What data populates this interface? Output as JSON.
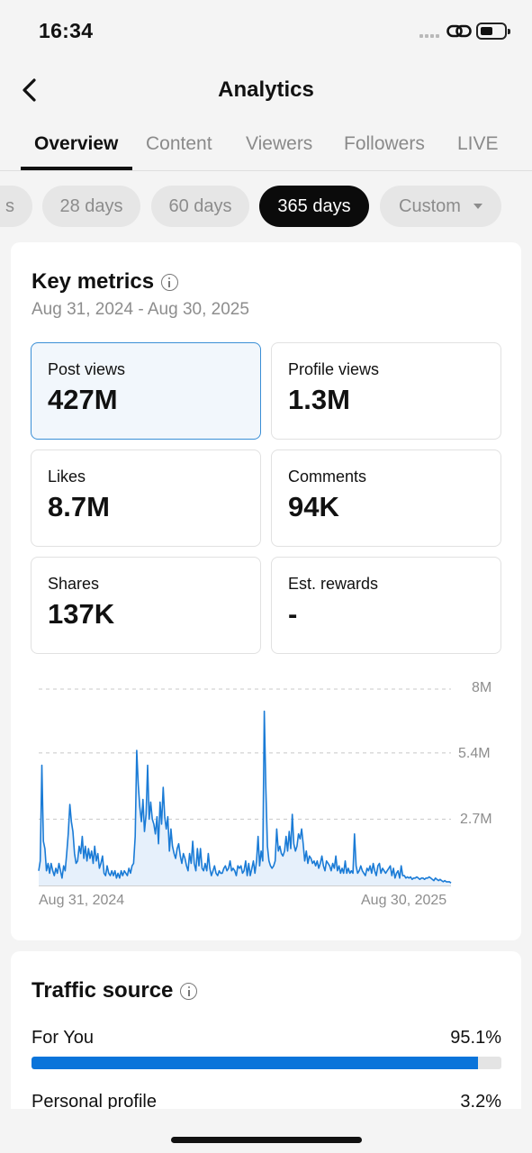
{
  "status_bar": {
    "time": "16:34",
    "icons": [
      "signal-icon",
      "link-icon",
      "battery-icon"
    ]
  },
  "nav": {
    "title": "Analytics",
    "back_icon": "chevron-left-icon"
  },
  "tabs": [
    {
      "label": "Overview",
      "active": true
    },
    {
      "label": "Content",
      "active": false
    },
    {
      "label": "Viewers",
      "active": false
    },
    {
      "label": "Followers",
      "active": false
    },
    {
      "label": "LIVE",
      "active": false
    }
  ],
  "periods": [
    {
      "label": "s",
      "active": false
    },
    {
      "label": "28 days",
      "active": false
    },
    {
      "label": "60 days",
      "active": false
    },
    {
      "label": "365 days",
      "active": true
    },
    {
      "label": "Custom",
      "active": false
    }
  ],
  "key_metrics": {
    "title": "Key metrics",
    "date_range": "Aug 31, 2024 - Aug 30, 2025",
    "metrics": [
      {
        "label": "Post views",
        "value": "427M",
        "selected": true
      },
      {
        "label": "Profile views",
        "value": "1.3M",
        "selected": false
      },
      {
        "label": "Likes",
        "value": "8.7M",
        "selected": false
      },
      {
        "label": "Comments",
        "value": "94K",
        "selected": false
      },
      {
        "label": "Shares",
        "value": "137K",
        "selected": false
      },
      {
        "label": "Est. rewards",
        "value": "-",
        "selected": false
      }
    ]
  },
  "chart_data": {
    "type": "area",
    "series": [
      {
        "values": [
          0.6,
          1.0,
          4.9,
          1.8,
          1.5,
          0.6,
          0.9,
          0.5,
          0.9,
          0.6,
          0.4,
          0.7,
          0.5,
          0.9,
          0.6,
          0.3,
          0.8,
          0.6,
          1.3,
          2.1,
          3.3,
          2.6,
          2.2,
          1.3,
          0.9,
          1.0,
          1.6,
          1.3,
          2.0,
          1.1,
          1.6,
          1.0,
          1.5,
          1.1,
          1.4,
          0.9,
          1.6,
          1.0,
          1.3,
          0.7,
          0.9,
          1.2,
          0.5,
          0.4,
          0.8,
          0.5,
          0.4,
          0.6,
          0.4,
          0.6,
          0.3,
          0.5,
          0.3,
          0.6,
          0.4,
          0.6,
          0.5,
          0.4,
          0.7,
          0.5,
          0.8,
          0.9,
          2.0,
          5.5,
          4.1,
          3.2,
          2.6,
          3.5,
          2.2,
          2.9,
          4.9,
          2.7,
          3.4,
          2.7,
          2.5,
          2.1,
          2.8,
          1.7,
          3.4,
          2.5,
          4.0,
          2.8,
          2.3,
          2.8,
          1.4,
          2.3,
          1.6,
          1.3,
          1.1,
          1.5,
          1.7,
          1.2,
          0.9,
          1.3,
          1.1,
          0.8,
          0.6,
          1.3,
          0.9,
          1.8,
          0.9,
          0.6,
          1.5,
          0.8,
          1.5,
          0.7,
          0.6,
          0.9,
          0.6,
          1.3,
          0.7,
          0.4,
          0.6,
          0.8,
          0.5,
          0.4,
          0.6,
          0.5,
          0.5,
          0.7,
          0.8,
          0.6,
          0.7,
          1.0,
          0.6,
          0.7,
          0.6,
          0.4,
          0.8,
          0.7,
          0.8,
          0.5,
          0.6,
          1.0,
          0.4,
          0.9,
          0.4,
          0.7,
          1.0,
          0.5,
          1.0,
          2.0,
          0.8,
          1.4,
          1.0,
          7.1,
          4.0,
          1.6,
          1.0,
          0.8,
          0.7,
          0.8,
          1.0,
          2.3,
          1.4,
          1.6,
          1.3,
          1.2,
          1.4,
          2.0,
          1.4,
          2.2,
          1.5,
          2.9,
          1.7,
          1.4,
          1.6,
          2.1,
          1.9,
          2.3,
          1.7,
          1.0,
          1.4,
          0.9,
          1.2,
          1.1,
          0.9,
          1.0,
          0.8,
          1.0,
          0.7,
          0.9,
          1.2,
          0.8,
          0.6,
          1.0,
          0.9,
          0.8,
          0.6,
          0.9,
          0.7,
          1.2,
          0.6,
          0.8,
          0.5,
          0.7,
          0.5,
          1.0,
          0.5,
          0.7,
          0.5,
          0.6,
          0.5,
          2.1,
          0.8,
          0.5,
          0.6,
          0.8,
          0.6,
          0.5,
          0.4,
          0.7,
          0.6,
          0.8,
          0.5,
          0.9,
          0.6,
          0.4,
          0.8,
          0.9,
          0.5,
          0.7,
          0.6,
          0.5,
          0.6,
          0.7,
          0.8,
          0.4,
          0.7,
          0.3,
          0.5,
          0.6,
          0.3,
          0.8,
          0.4,
          0.4,
          0.3,
          0.35,
          0.3,
          0.35,
          0.25,
          0.3,
          0.3,
          0.35,
          0.3,
          0.25,
          0.3,
          0.3,
          0.25,
          0.3,
          0.3,
          0.35,
          0.3,
          0.25,
          0.2,
          0.3,
          0.25,
          0.2,
          0.25,
          0.2,
          0.15,
          0.2,
          0.15,
          0.15,
          0.15,
          0.1
        ]
      }
    ],
    "y_ticks": [
      "8M",
      "5.4M",
      "2.7M"
    ],
    "y_tick_values": [
      8,
      5.4,
      2.7
    ],
    "ylim": [
      0,
      8
    ],
    "x_labels": [
      "Aug 31, 2024",
      "Aug 30, 2025"
    ],
    "grid": true,
    "line_color": "#1a7bd6",
    "fill_color": "#e6f0fb"
  },
  "traffic": {
    "title": "Traffic source",
    "rows": [
      {
        "label": "For You",
        "value": "95.1%",
        "fraction": 0.951
      },
      {
        "label": "Personal profile",
        "value": "3.2%",
        "fraction": 0.032
      }
    ],
    "bar_color": "#0a74da"
  }
}
